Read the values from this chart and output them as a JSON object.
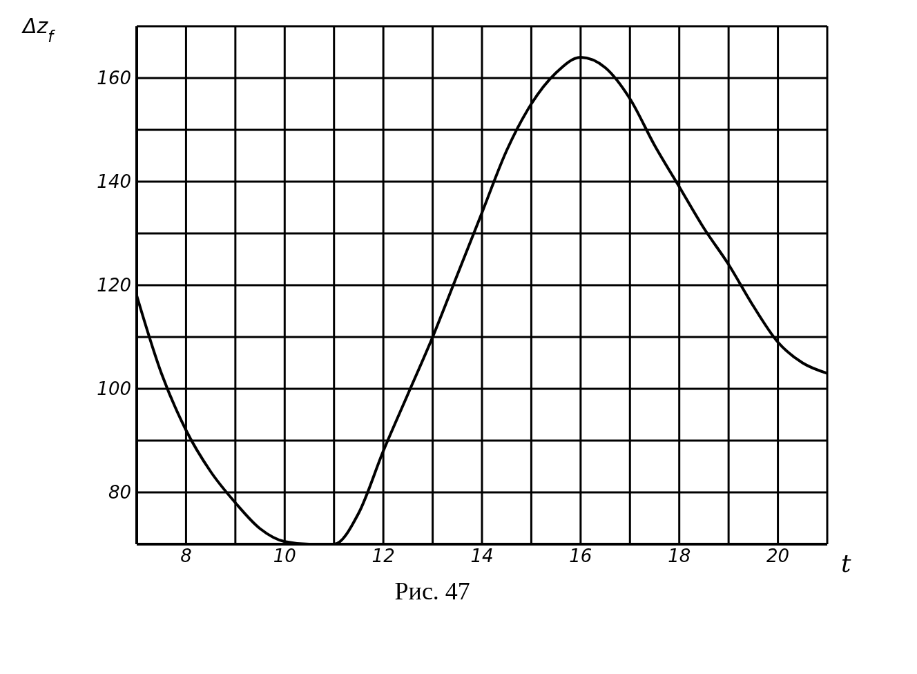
{
  "chart_data": {
    "type": "line",
    "xlabel": "t",
    "ylabel": "Δz$_{f}$",
    "annotations": [
      "Рис. 47"
    ],
    "x": [
      7,
      7.5,
      8,
      8.5,
      9,
      9.5,
      10,
      10.5,
      11,
      11.5,
      12,
      12.5,
      13,
      13.5,
      14,
      14.5,
      15,
      15.5,
      16,
      16.5,
      17,
      17.5,
      18,
      18.5,
      19,
      19.5,
      20,
      20.5,
      21
    ],
    "series": [
      {
        "color": "#000000",
        "values": [
          118,
          103,
          92,
          84,
          78,
          73,
          70.5,
          70,
          70,
          76,
          88,
          99,
          110,
          122,
          134,
          146,
          155,
          161,
          164,
          162,
          156,
          147,
          139,
          131,
          124,
          116,
          109,
          105,
          103
        ]
      }
    ],
    "xlim": [
      7,
      21
    ],
    "xticks": [
      {
        "value": 7,
        "label": null
      },
      8,
      {
        "value": 9,
        "label": null
      },
      10,
      {
        "value": 11,
        "label": null
      },
      12,
      {
        "value": 13,
        "label": null
      },
      14,
      {
        "value": 15,
        "label": null
      },
      16,
      {
        "value": 17,
        "label": null
      },
      18,
      {
        "value": 19,
        "label": null
      },
      20,
      {
        "value": 21,
        "label": null
      }
    ],
    "ylim": [
      70,
      170
    ],
    "yticks": [
      {
        "value": 70,
        "label": null
      },
      80,
      {
        "value": 90,
        "label": null
      },
      100,
      {
        "value": 110,
        "label": null
      },
      120,
      {
        "value": 130,
        "label": null
      },
      140,
      {
        "value": 150,
        "label": null
      },
      160,
      {
        "value": 170,
        "label": null
      }
    ],
    "grid": true,
    "marker": "none",
    "line_style": "solid"
  }
}
